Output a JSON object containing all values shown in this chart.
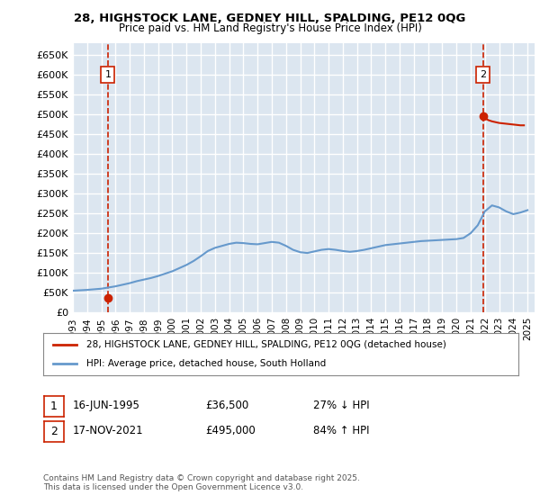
{
  "title1": "28, HIGHSTOCK LANE, GEDNEY HILL, SPALDING, PE12 0QG",
  "title2": "Price paid vs. HM Land Registry's House Price Index (HPI)",
  "legend_line1": "28, HIGHSTOCK LANE, GEDNEY HILL, SPALDING, PE12 0QG (detached house)",
  "legend_line2": "HPI: Average price, detached house, South Holland",
  "footnote": "Contains HM Land Registry data © Crown copyright and database right 2025.\nThis data is licensed under the Open Government Licence v3.0.",
  "sale1_label": "1",
  "sale1_date": "16-JUN-1995",
  "sale1_price": "£36,500",
  "sale1_hpi": "27% ↓ HPI",
  "sale1_year": 1995.46,
  "sale1_value": 36500,
  "sale2_label": "2",
  "sale2_date": "17-NOV-2021",
  "sale2_price": "£495,000",
  "sale2_hpi": "84% ↑ HPI",
  "sale2_year": 2021.88,
  "sale2_value": 495000,
  "ylim_min": 0,
  "ylim_max": 680000,
  "hpi_color": "#6699cc",
  "price_color": "#cc2200",
  "vline_color": "#cc2200",
  "background_color": "#dce6f0",
  "plot_bg": "#dce6f0",
  "grid_color": "#ffffff",
  "hpi_years": [
    1993,
    1993.5,
    1994,
    1994.5,
    1995,
    1995.5,
    1996,
    1996.5,
    1997,
    1997.5,
    1998,
    1998.5,
    1999,
    1999.5,
    2000,
    2000.5,
    2001,
    2001.5,
    2002,
    2002.5,
    2003,
    2003.5,
    2004,
    2004.5,
    2005,
    2005.5,
    2006,
    2006.5,
    2007,
    2007.5,
    2008,
    2008.5,
    2009,
    2009.5,
    2010,
    2010.5,
    2011,
    2011.5,
    2012,
    2012.5,
    2013,
    2013.5,
    2014,
    2014.5,
    2015,
    2015.5,
    2016,
    2016.5,
    2017,
    2017.5,
    2018,
    2018.5,
    2019,
    2019.5,
    2020,
    2020.5,
    2021,
    2021.5,
    2022,
    2022.5,
    2023,
    2023.5,
    2024,
    2024.5,
    2025
  ],
  "hpi_values": [
    55000,
    56000,
    57000,
    58500,
    60000,
    63000,
    66000,
    70000,
    74000,
    79000,
    83000,
    87000,
    92000,
    98000,
    104000,
    112000,
    120000,
    130000,
    142000,
    155000,
    163000,
    168000,
    173000,
    176000,
    175000,
    173000,
    172000,
    175000,
    178000,
    176000,
    168000,
    158000,
    152000,
    150000,
    154000,
    158000,
    160000,
    158000,
    155000,
    153000,
    155000,
    158000,
    162000,
    166000,
    170000,
    172000,
    174000,
    176000,
    178000,
    180000,
    181000,
    182000,
    183000,
    184000,
    185000,
    188000,
    200000,
    220000,
    255000,
    270000,
    265000,
    255000,
    248000,
    252000,
    258000
  ],
  "price_years": [
    1993,
    1993.25,
    1993.5,
    1993.75,
    1994,
    1994.25,
    1994.5,
    1994.75,
    1995,
    1995.25,
    1995.46,
    1995.75,
    1996,
    1996.5,
    1997,
    1997.5,
    1998,
    1998.5,
    1999,
    1999.5,
    2000,
    2000.5,
    2001,
    2001.5,
    2002,
    2002.5,
    2003,
    2003.5,
    2004,
    2004.5,
    2005,
    2005.5,
    2006,
    2006.5,
    2007,
    2007.5,
    2008,
    2008.5,
    2009,
    2009.5,
    2010,
    2010.5,
    2011,
    2011.5,
    2012,
    2012.5,
    2013,
    2013.5,
    2014,
    2014.5,
    2015,
    2015.5,
    2016,
    2016.5,
    2017,
    2017.5,
    2018,
    2018.5,
    2019,
    2019.5,
    2020,
    2020.5,
    2021,
    2021.5,
    2021.88,
    2022,
    2022.25,
    2022.5,
    2022.75,
    2023,
    2023.25,
    2023.5,
    2023.75,
    2024,
    2024.25,
    2024.5,
    2024.75,
    2025
  ],
  "price_values": [
    null,
    null,
    null,
    null,
    null,
    null,
    null,
    null,
    null,
    null,
    36500,
    null,
    null,
    null,
    null,
    null,
    null,
    null,
    null,
    null,
    null,
    null,
    null,
    null,
    null,
    null,
    null,
    null,
    null,
    null,
    null,
    null,
    null,
    null,
    null,
    null,
    null,
    null,
    null,
    null,
    null,
    null,
    null,
    null,
    null,
    null,
    null,
    null,
    null,
    null,
    null,
    null,
    null,
    null,
    null,
    null,
    null,
    null,
    null,
    null,
    null,
    495000,
    null,
    null,
    495000,
    490000,
    485000,
    482000,
    480000,
    478000,
    477000,
    476000,
    475000,
    474000,
    473000,
    472000,
    472000
  ],
  "xtick_years": [
    1993,
    1994,
    1995,
    1996,
    1997,
    1998,
    1999,
    2000,
    2001,
    2002,
    2003,
    2004,
    2005,
    2006,
    2007,
    2008,
    2009,
    2010,
    2011,
    2012,
    2013,
    2014,
    2015,
    2016,
    2017,
    2018,
    2019,
    2020,
    2021,
    2022,
    2023,
    2024,
    2025
  ]
}
